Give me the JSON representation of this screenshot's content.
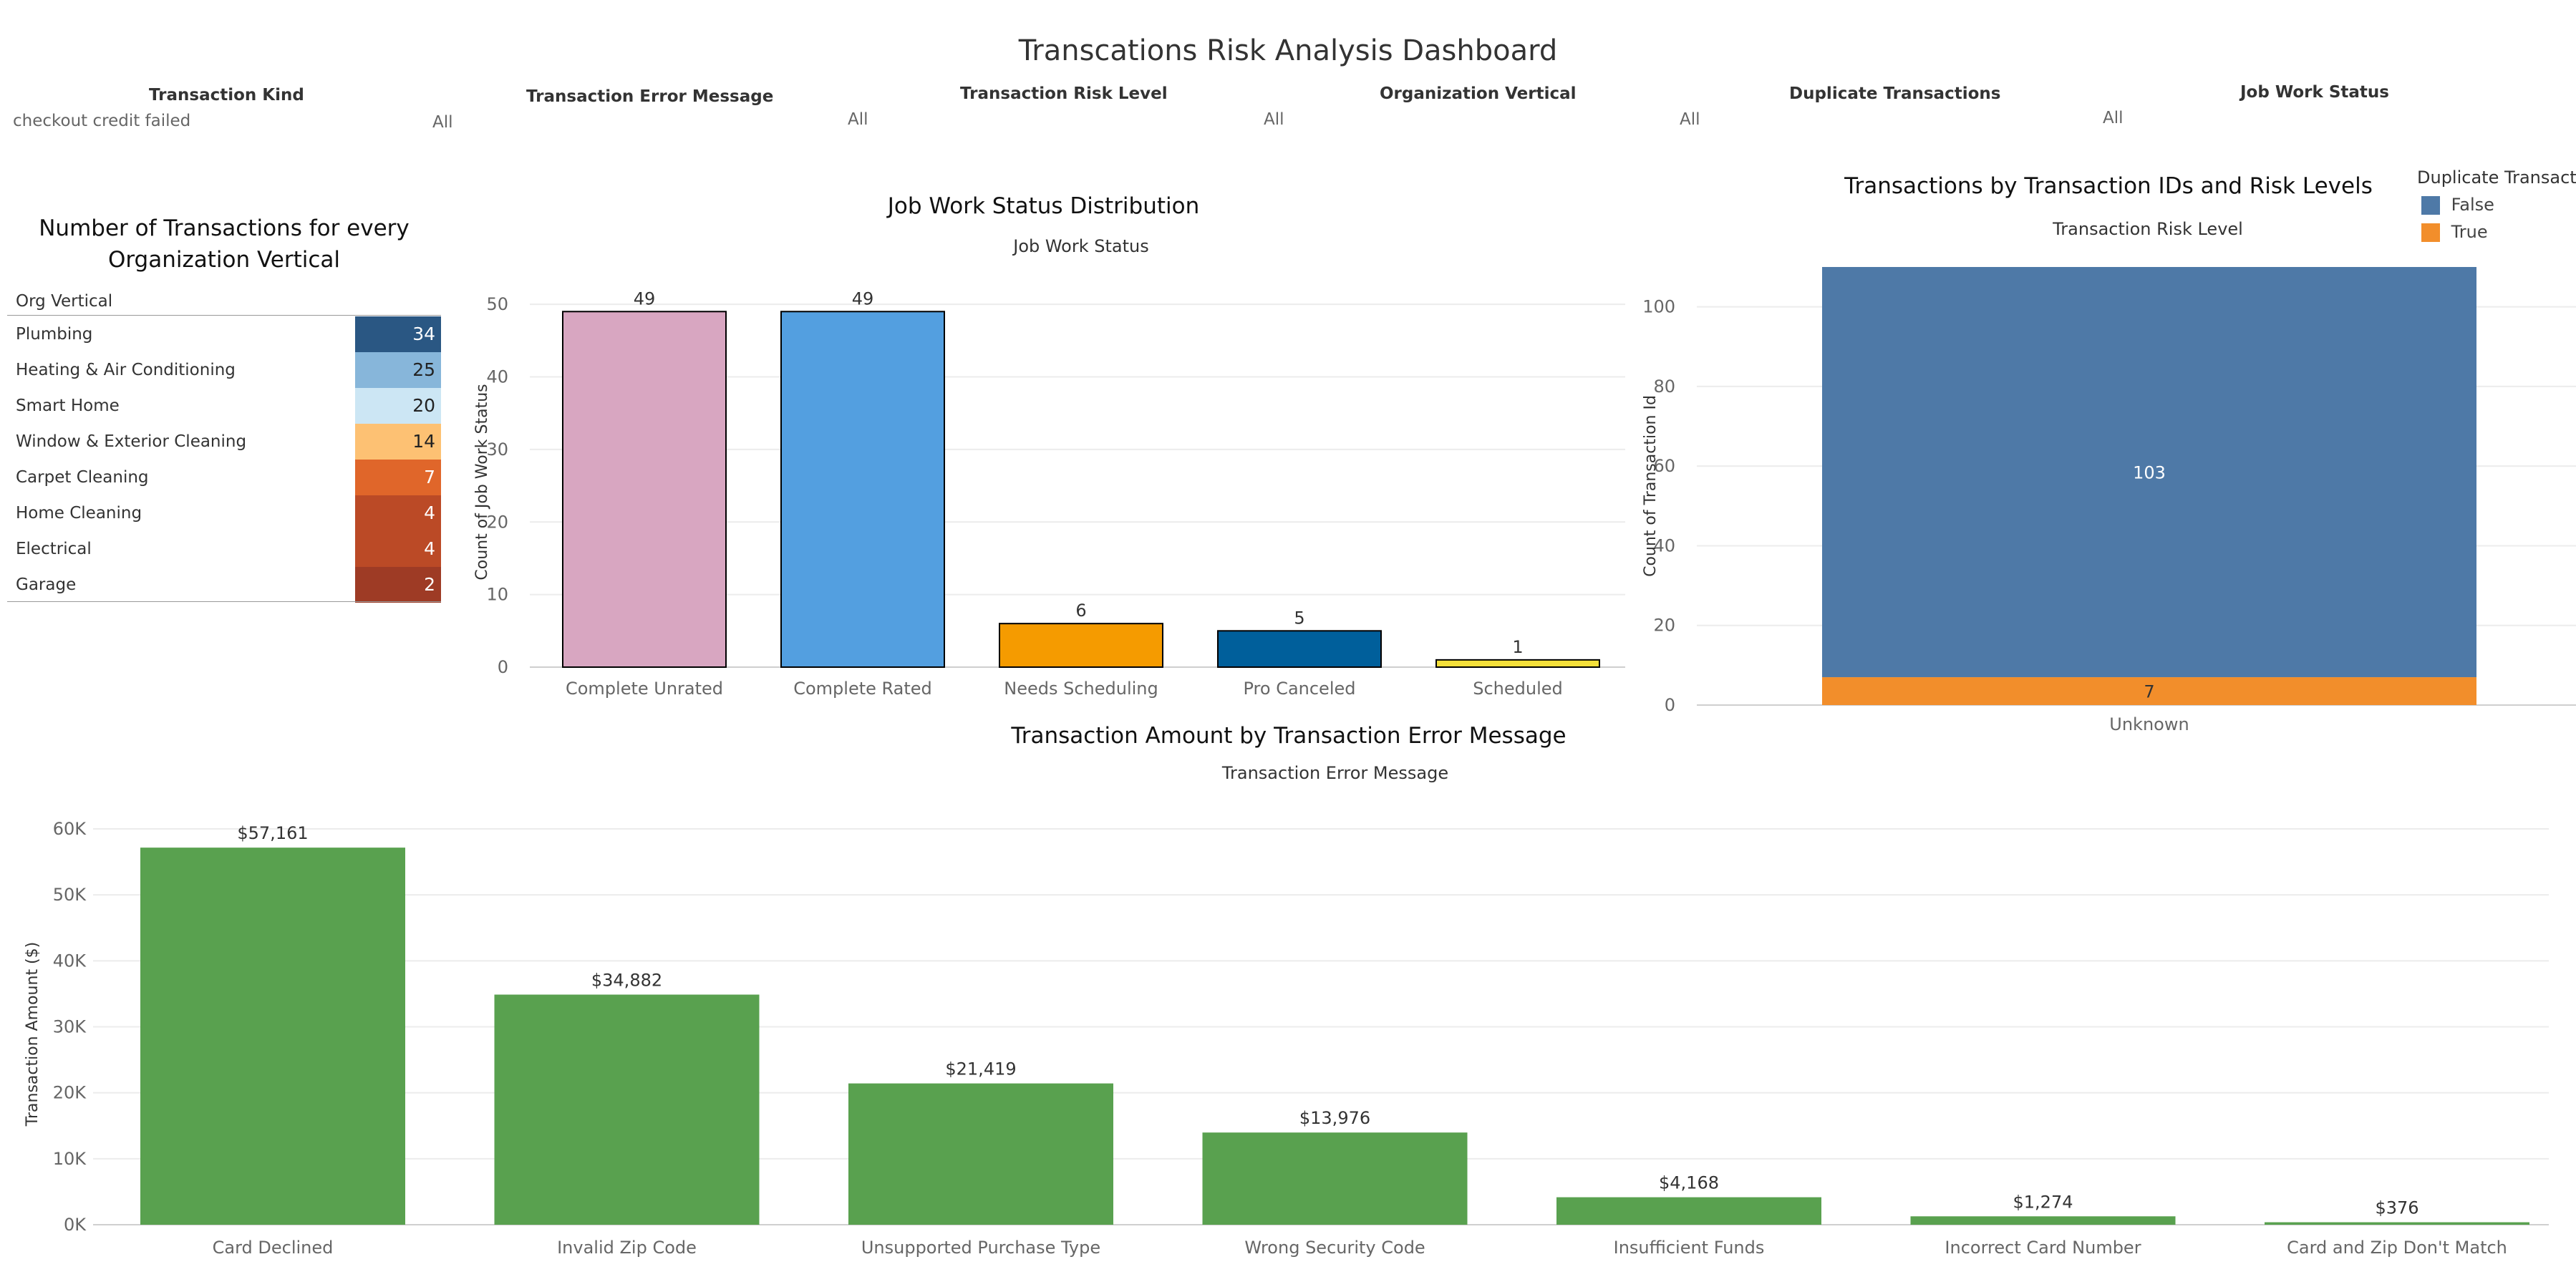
{
  "dashboard": {
    "title": "Transcations Risk Analysis Dashboard"
  },
  "filters": [
    {
      "label": "Transaction Kind",
      "value": "checkout credit failed",
      "value2": "All"
    },
    {
      "label": "Transaction Error Message",
      "value": "All"
    },
    {
      "label": "Transaction Risk Level",
      "value": "All"
    },
    {
      "label": "Organization Vertical",
      "value": "All"
    },
    {
      "label": "Duplicate Transactions",
      "value": "All"
    },
    {
      "label": "Job Work Status",
      "value": ""
    }
  ],
  "org_panel": {
    "title_line1": "Number of Transactions for every",
    "title_line2": "Organization Vertical",
    "column_header": "Org Vertical",
    "rows": [
      {
        "name": "Plumbing",
        "value": "34",
        "color": "#2a5783",
        "text_color": "#ffffff"
      },
      {
        "name": "Heating & Air Conditioning",
        "value": "25",
        "color": "#87b6da",
        "text_color": "#222222"
      },
      {
        "name": "Smart Home",
        "value": "20",
        "color": "#cce6f4",
        "text_color": "#222222"
      },
      {
        "name": "Window & Exterior Cleaning",
        "value": "14",
        "color": "#fdc173",
        "text_color": "#222222"
      },
      {
        "name": "Carpet Cleaning",
        "value": "7",
        "color": "#e0662a",
        "text_color": "#ffffff"
      },
      {
        "name": "Home Cleaning",
        "value": "4",
        "color": "#bb4a26",
        "text_color": "#ffffff"
      },
      {
        "name": "Electrical",
        "value": "4",
        "color": "#bb4a26",
        "text_color": "#ffffff"
      },
      {
        "name": "Garage",
        "value": "2",
        "color": "#9e3b25",
        "text_color": "#ffffff"
      }
    ]
  },
  "job_panel": {
    "title": "Job Work Status Distribution",
    "subtitle": "Job Work Status"
  },
  "risk_panel": {
    "title": "Transactions by Transaction IDs and Risk Levels",
    "subtitle": "Transaction Risk Level",
    "legend_title": "Duplicate Transacti",
    "legend": [
      {
        "name": "False",
        "color": "#4e79a7"
      },
      {
        "name": "True",
        "color": "#f28e2b"
      }
    ]
  },
  "amount_panel": {
    "title": "Transaction Amount by Transaction Error Message",
    "subtitle": "Transaction Error Message"
  },
  "chart_data": [
    {
      "type": "table",
      "title": "Number of Transactions for every Organization Vertical",
      "categories": [
        "Plumbing",
        "Heating & Air Conditioning",
        "Smart Home",
        "Window & Exterior Cleaning",
        "Carpet Cleaning",
        "Home Cleaning",
        "Electrical",
        "Garage"
      ],
      "values": [
        34,
        25,
        20,
        14,
        7,
        4,
        4,
        2
      ]
    },
    {
      "type": "bar",
      "title": "Job Work Status Distribution",
      "xlabel": "Job Work Status",
      "ylabel": "Count of Job Work Status",
      "categories": [
        "Complete Unrated",
        "Complete Rated",
        "Needs Scheduling",
        "Pro Canceled",
        "Scheduled"
      ],
      "values": [
        49,
        49,
        6,
        5,
        1
      ],
      "colors": [
        "#d8a6c1",
        "#539fe0",
        "#f59b00",
        "#005f9b",
        "#f4e03a"
      ],
      "data_labels": [
        "49",
        "49",
        "6",
        "5",
        "1"
      ],
      "yticks": [
        0,
        10,
        20,
        30,
        40,
        50
      ],
      "ytick_labels": [
        "0",
        "10",
        "20",
        "30",
        "40",
        "50"
      ],
      "ylim": [
        0,
        50
      ],
      "grid": true
    },
    {
      "type": "bar",
      "title": "Transactions by Transaction IDs and Risk Levels",
      "xlabel": "Transaction Risk Level",
      "ylabel": "Count of Transaction Id",
      "categories": [
        "Unknown"
      ],
      "stacked": true,
      "series": [
        {
          "name": "True",
          "values": [
            7
          ],
          "color": "#f28e2b",
          "label": "7"
        },
        {
          "name": "False",
          "values": [
            103
          ],
          "color": "#4e79a7",
          "label": "103"
        }
      ],
      "yticks": [
        0,
        20,
        40,
        60,
        80,
        100
      ],
      "ytick_labels": [
        "0",
        "20",
        "40",
        "60",
        "80",
        "100"
      ],
      "ylim": [
        0,
        110
      ],
      "legend_title": "Duplicate Transacti",
      "legend_position": "top-right",
      "grid": true
    },
    {
      "type": "bar",
      "title": "Transaction Amount by Transaction Error Message",
      "xlabel": "Transaction Error Message",
      "ylabel": "Transaction Amount ($)",
      "categories": [
        "Card Declined",
        "Invalid Zip Code",
        "Unsupported Purchase Type",
        "Wrong Security Code",
        "Insufficient Funds",
        "Incorrect Card Number",
        "Card and Zip Don't Match"
      ],
      "values": [
        57161,
        34882,
        21419,
        13976,
        4168,
        1274,
        376
      ],
      "data_labels": [
        "$57,161",
        "$34,882",
        "$21,419",
        "$13,976",
        "$4,168",
        "$1,274",
        "$376"
      ],
      "color": "#59a14f",
      "yticks": [
        0,
        10000,
        20000,
        30000,
        40000,
        50000,
        60000
      ],
      "ytick_labels": [
        "0K",
        "10K",
        "20K",
        "30K",
        "40K",
        "50K",
        "60K"
      ],
      "ylim": [
        0,
        57161
      ],
      "grid": true
    }
  ]
}
